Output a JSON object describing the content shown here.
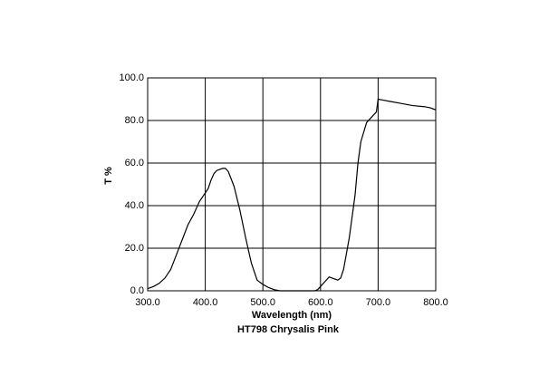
{
  "chart_data": {
    "type": "line",
    "title": "HT798 Chrysalis Pink",
    "x_label": "Wavelength (nm)",
    "y_label": "T %",
    "x": [
      300,
      310,
      320,
      330,
      340,
      350,
      360,
      370,
      380,
      390,
      400,
      405,
      410,
      415,
      420,
      430,
      435,
      440,
      450,
      460,
      470,
      480,
      490,
      500,
      510,
      520,
      530,
      550,
      590,
      595,
      600,
      610,
      615,
      620,
      630,
      635,
      640,
      650,
      660,
      665,
      670,
      680,
      690,
      697,
      700,
      710,
      720,
      740,
      760,
      780,
      790,
      800
    ],
    "values": [
      1,
      2,
      3.5,
      6,
      10,
      17,
      24,
      31,
      36,
      42,
      46,
      48,
      52,
      55,
      56.5,
      57.5,
      57.5,
      56,
      49,
      38,
      25,
      13,
      5,
      3,
      1.5,
      0.5,
      0,
      0,
      0,
      0.5,
      2,
      5,
      6.5,
      6,
      5,
      6,
      10,
      25,
      45,
      60,
      70,
      79,
      82,
      84,
      90,
      89.5,
      89,
      88,
      87,
      86.5,
      86,
      85
    ],
    "color": "#000000",
    "xlim": [
      300,
      800
    ],
    "ylim": [
      0,
      100
    ],
    "xticks": [
      {
        "value": 300,
        "label": "300.0"
      },
      {
        "value": 400,
        "label": "400.0"
      },
      {
        "value": 500,
        "label": "500.0"
      },
      {
        "value": 600,
        "label": "600.0"
      },
      {
        "value": 700,
        "label": "700.0"
      },
      {
        "value": 800,
        "label": "800.0"
      }
    ],
    "yticks": [
      {
        "value": 0,
        "label": "0.0"
      },
      {
        "value": 20,
        "label": "20.0"
      },
      {
        "value": 40,
        "label": "40.0"
      },
      {
        "value": 60,
        "label": "60.0"
      },
      {
        "value": 80,
        "label": "80.0"
      },
      {
        "value": 100,
        "label": "100.0"
      }
    ],
    "grid": true
  }
}
